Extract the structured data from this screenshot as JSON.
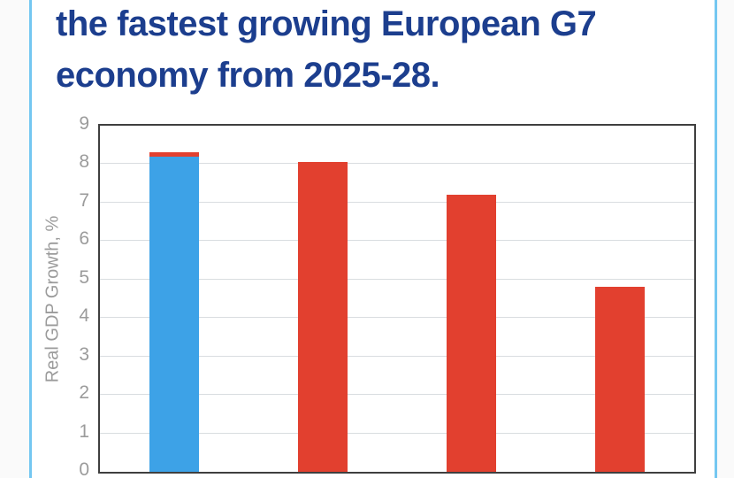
{
  "page": {
    "background_color": "#fafafa",
    "card_background": "#ffffff",
    "card_border_color": "#74c7f1"
  },
  "header": {
    "title_line1": "the fastest growing European G7",
    "title_line2": "economy from 2025-28.",
    "title_color": "#1c3e8e"
  },
  "chart_data": {
    "type": "bar",
    "stacked": true,
    "title": "",
    "xlabel": "",
    "ylabel": "Real GDP Growth, %",
    "ylim": [
      0,
      9
    ],
    "yticks": [
      0,
      1,
      2,
      3,
      4,
      5,
      6,
      7,
      8,
      9
    ],
    "grid": true,
    "legend_position": "none",
    "categories": [
      "",
      "",
      "",
      ""
    ],
    "series": [
      {
        "name": "blue",
        "color": "#3da2e7",
        "values": [
          8.2,
          0,
          0,
          0
        ]
      },
      {
        "name": "red",
        "color": "#e2402f",
        "values": [
          0.1,
          8.05,
          7.2,
          4.8
        ]
      }
    ],
    "axis_text_color": "#9b9b9b",
    "gridline_color": "#d9dde0",
    "plot_border_color": "#3f3f3f"
  }
}
